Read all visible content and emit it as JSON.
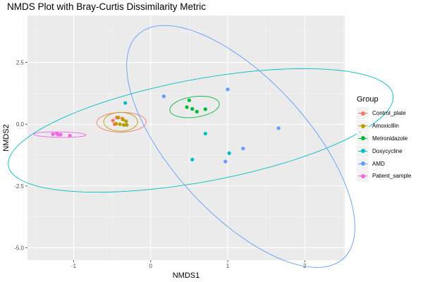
{
  "chart_data": {
    "type": "scatter",
    "title": "NMDS Plot with Bray-Curtis Dissimilarity Metric",
    "xlabel": "NMDS1",
    "ylabel": "NMDS2",
    "xlim": [
      -1.6,
      2.52
    ],
    "ylim": [
      -5.5,
      4.4
    ],
    "x_ticks": [
      -1,
      0,
      1,
      2
    ],
    "y_ticks": [
      -5.0,
      -2.5,
      0.0,
      2.5
    ],
    "x_tick_labels": [
      "-1",
      "0",
      "1",
      "2"
    ],
    "y_tick_labels": [
      "-5.0",
      "-2.5",
      "0.0",
      "2.5"
    ],
    "grid": true,
    "legend_position": "right",
    "legend_title": "Group",
    "series": [
      {
        "name": "Control_plate",
        "color": "#F8766D",
        "points": [
          [
            -0.49,
            0.15
          ],
          [
            -0.44,
            0.27
          ],
          [
            -0.37,
            0.23
          ],
          [
            -0.47,
            0.0
          ]
        ],
        "ellipse": {
          "center": [
            -0.38,
            0.08
          ],
          "rx": 0.32,
          "ry": 0.4,
          "angle": -5
        }
      },
      {
        "name": "Amoxicillin",
        "color": "#B79F00",
        "points": [
          [
            -0.45,
            0.02
          ],
          [
            -0.42,
            0.27
          ],
          [
            -0.36,
            0.19
          ],
          [
            -0.32,
            0.12
          ],
          [
            -0.35,
            -0.03
          ],
          [
            -0.31,
            -0.03
          ],
          [
            -0.4,
            0.0
          ]
        ],
        "ellipse": {
          "center": [
            -0.39,
            0.1
          ],
          "rx": 0.22,
          "ry": 0.38,
          "angle": 0
        }
      },
      {
        "name": "Metronidazole",
        "color": "#00BA38",
        "points": [
          [
            0.5,
            0.97
          ],
          [
            0.47,
            0.69
          ],
          [
            0.54,
            0.62
          ],
          [
            0.6,
            0.51
          ],
          [
            0.71,
            0.61
          ]
        ],
        "ellipse": {
          "center": [
            0.57,
            0.7
          ],
          "rx": 0.3,
          "ry": 0.45,
          "angle": -20
        }
      },
      {
        "name": "Doxycycline",
        "color": "#00BFC4",
        "points": [
          [
            -0.33,
            0.86
          ],
          [
            0.71,
            -0.38
          ],
          [
            1.02,
            -1.17
          ],
          [
            0.54,
            -1.43
          ]
        ],
        "ellipse": {
          "center": [
            0.65,
            -0.25
          ],
          "rx": 1.7,
          "ry": 3.1,
          "angle": -45
        }
      },
      {
        "name": "AMD",
        "color": "#619CFF",
        "points": [
          [
            0.17,
            1.13
          ],
          [
            1.0,
            1.41
          ],
          [
            1.66,
            -0.16
          ],
          [
            1.2,
            -0.98
          ],
          [
            0.97,
            -1.51
          ]
        ],
        "ellipse": {
          "center": [
            1.17,
            -0.9
          ],
          "rx": 1.08,
          "ry": 5.0,
          "angle": 12
        }
      },
      {
        "name": "Patient_sample",
        "color": "#F564E3",
        "points": [
          [
            -1.27,
            -0.4
          ],
          [
            -1.22,
            -0.37
          ],
          [
            -1.17,
            -0.42
          ],
          [
            -1.2,
            -0.42
          ],
          [
            -1.05,
            -0.46
          ]
        ],
        "ellipse": {
          "center": [
            -1.18,
            -0.42
          ],
          "rx": 0.34,
          "ry": 0.11,
          "angle": -3
        }
      }
    ]
  }
}
